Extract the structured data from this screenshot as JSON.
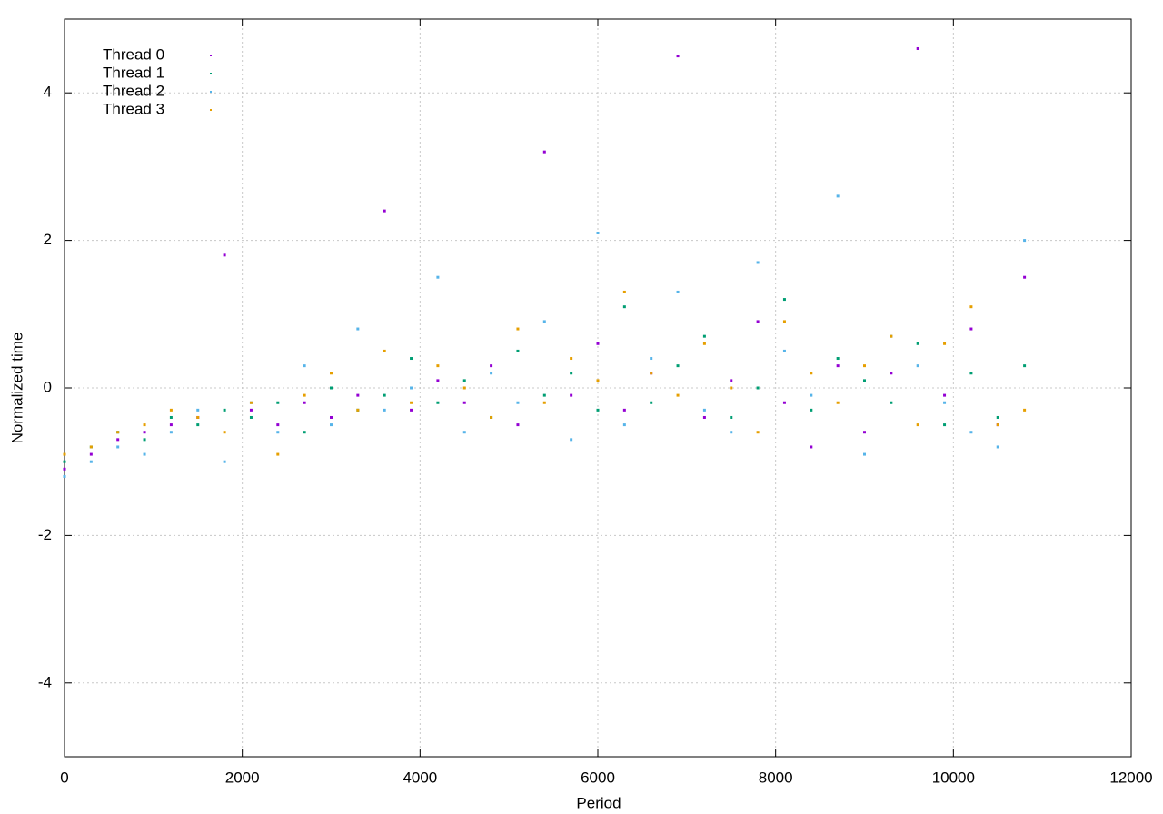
{
  "chart_data": {
    "type": "scatter",
    "xlabel": "Period",
    "ylabel": "Normalized time",
    "x": [
      0,
      300,
      600,
      900,
      1200,
      1500,
      1800,
      2100,
      2400,
      2700,
      3000,
      3300,
      3600,
      3900,
      4200,
      4500,
      4800,
      5100,
      5400,
      5700,
      6000,
      6300,
      6600,
      6900,
      7200,
      7500,
      7800,
      8100,
      8400,
      8700,
      9000,
      9300,
      9600,
      9900,
      10200,
      10500,
      10800
    ],
    "series": [
      {
        "name": "Thread 0",
        "color": "#9400d3",
        "values": [
          -1.1,
          -0.9,
          -0.7,
          -0.6,
          -0.5,
          -0.4,
          1.8,
          -0.3,
          -0.5,
          -0.2,
          -0.4,
          -0.1,
          2.4,
          -0.3,
          0.1,
          -0.2,
          0.3,
          -0.5,
          3.2,
          -0.1,
          0.6,
          -0.3,
          0.2,
          4.5,
          -0.4,
          0.1,
          0.9,
          -0.2,
          -0.8,
          0.3,
          -0.6,
          0.2,
          4.6,
          -0.1,
          0.8,
          -0.5,
          1.5
        ]
      },
      {
        "name": "Thread 1",
        "color": "#009e73",
        "values": [
          -1.0,
          -0.8,
          -0.6,
          -0.7,
          -0.4,
          -0.5,
          -0.3,
          -0.4,
          -0.2,
          -0.6,
          0.0,
          -0.3,
          -0.1,
          0.4,
          -0.2,
          0.1,
          -0.4,
          0.5,
          -0.1,
          0.2,
          -0.3,
          1.1,
          -0.2,
          0.3,
          0.7,
          -0.4,
          0.0,
          1.2,
          -0.3,
          0.4,
          0.1,
          -0.2,
          0.6,
          -0.5,
          0.2,
          -0.4,
          0.3
        ]
      },
      {
        "name": "Thread 2",
        "color": "#56b4e9",
        "values": [
          -1.2,
          -1.0,
          -0.8,
          -0.9,
          -0.6,
          -0.3,
          -1.0,
          -0.2,
          -0.6,
          0.3,
          -0.5,
          0.8,
          -0.3,
          0.0,
          1.5,
          -0.6,
          0.2,
          -0.2,
          0.9,
          -0.7,
          2.1,
          -0.5,
          0.4,
          1.3,
          -0.3,
          -0.6,
          1.7,
          0.5,
          -0.1,
          2.6,
          -0.9,
          0.7,
          0.3,
          -0.2,
          -0.6,
          -0.8,
          2.0
        ]
      },
      {
        "name": "Thread 3",
        "color": "#e69f00",
        "values": [
          -0.9,
          -0.8,
          -0.6,
          -0.5,
          -0.3,
          -0.4,
          -0.6,
          -0.2,
          -0.9,
          -0.1,
          0.2,
          -0.3,
          0.5,
          -0.2,
          0.3,
          0.0,
          -0.4,
          0.8,
          -0.2,
          0.4,
          0.1,
          1.3,
          0.2,
          -0.1,
          0.6,
          0.0,
          -0.6,
          0.9,
          0.2,
          -0.2,
          0.3,
          0.7,
          -0.5,
          0.6,
          1.1,
          -0.5,
          -0.3
        ]
      }
    ],
    "xlim": [
      0,
      12000
    ],
    "xticks": [
      0,
      2000,
      4000,
      6000,
      8000,
      10000,
      12000
    ],
    "ylim": [
      -5,
      5
    ],
    "yticks": [
      -4,
      -2,
      0,
      2,
      4
    ],
    "grid": true,
    "legend": "top-left"
  }
}
